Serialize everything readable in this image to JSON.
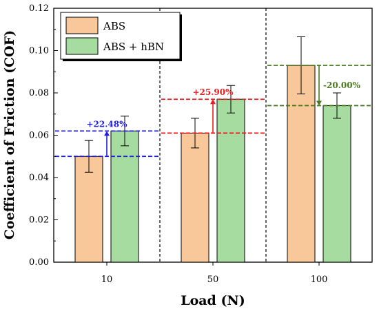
{
  "chart_data": {
    "type": "bar",
    "categories": [
      "10",
      "50",
      "100"
    ],
    "series": [
      {
        "name": "ABS",
        "values": [
          0.05,
          0.061,
          0.093
        ],
        "errors": [
          0.0075,
          0.007,
          0.0135
        ],
        "color": "#f8c89a"
      },
      {
        "name": "ABS + hBN",
        "values": [
          0.062,
          0.077,
          0.074
        ],
        "errors": [
          0.007,
          0.0065,
          0.006
        ],
        "color": "#a6dca0"
      }
    ],
    "xlabel": "Load (N)",
    "ylabel": "Coefficient of Friction (COF)",
    "ylim": [
      0,
      0.12
    ],
    "yticks": [
      "0.00",
      "0.02",
      "0.04",
      "0.06",
      "0.08",
      "0.10",
      "0.12"
    ],
    "grid": false,
    "legend_position": "top-left",
    "annotations": [
      {
        "text": "+22.48%",
        "color": "#1f1fe6",
        "from": 0.05,
        "to": 0.062,
        "group": 0
      },
      {
        "text": "+25.90%",
        "color": "#e81c1c",
        "from": 0.061,
        "to": 0.077,
        "group": 1
      },
      {
        "text": "-20.00%",
        "color": "#4a7a1e",
        "from": 0.093,
        "to": 0.074,
        "group": 2
      }
    ]
  }
}
